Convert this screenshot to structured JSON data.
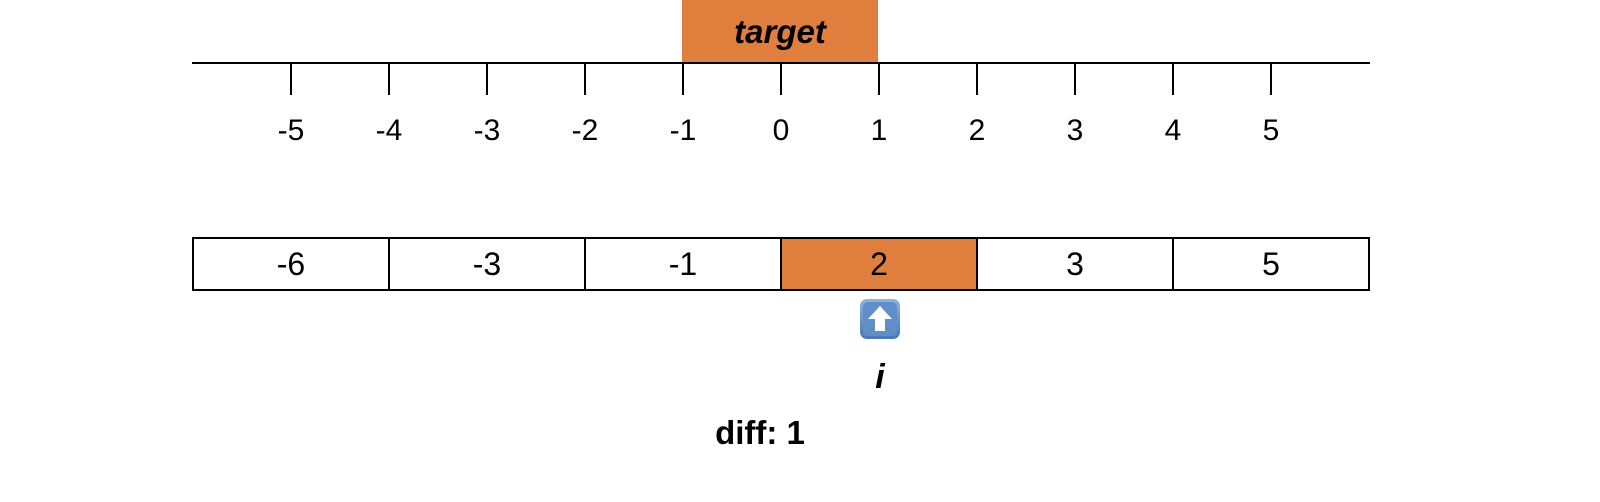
{
  "target": {
    "label": "target",
    "value": 0,
    "color": "#E07E3E"
  },
  "number_line": {
    "ticks": [
      "-5",
      "-4",
      "-3",
      "-2",
      "-1",
      "0",
      "1",
      "2",
      "3",
      "4",
      "5"
    ]
  },
  "array": {
    "cells": [
      "-6",
      "-3",
      "-1",
      "2",
      "3",
      "5"
    ],
    "highlight_index": 3,
    "highlight_color": "#E07E3E"
  },
  "pointer": {
    "icon": "up-arrow-icon",
    "label": "i",
    "index": 3
  },
  "diff": {
    "label": "diff:",
    "value": "1"
  }
}
